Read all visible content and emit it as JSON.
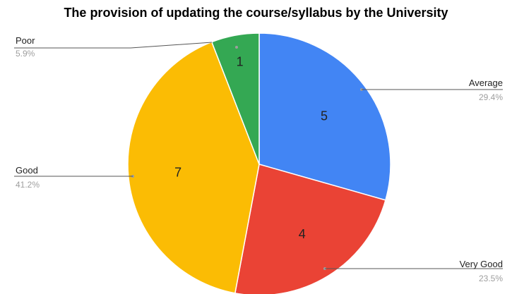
{
  "chart_data": {
    "type": "pie",
    "title": "The provision of updating the course/syllabus by the University",
    "slices": [
      {
        "name": "Average",
        "value": 5,
        "percent": "29.4%",
        "color": "#4285F4"
      },
      {
        "name": "Very Good",
        "value": 4,
        "percent": "23.5%",
        "color": "#EA4335"
      },
      {
        "name": "Good",
        "value": 7,
        "percent": "41.2%",
        "color": "#FBBC04"
      },
      {
        "name": "Poor",
        "value": 1,
        "percent": "5.9%",
        "color": "#34A853"
      }
    ]
  }
}
